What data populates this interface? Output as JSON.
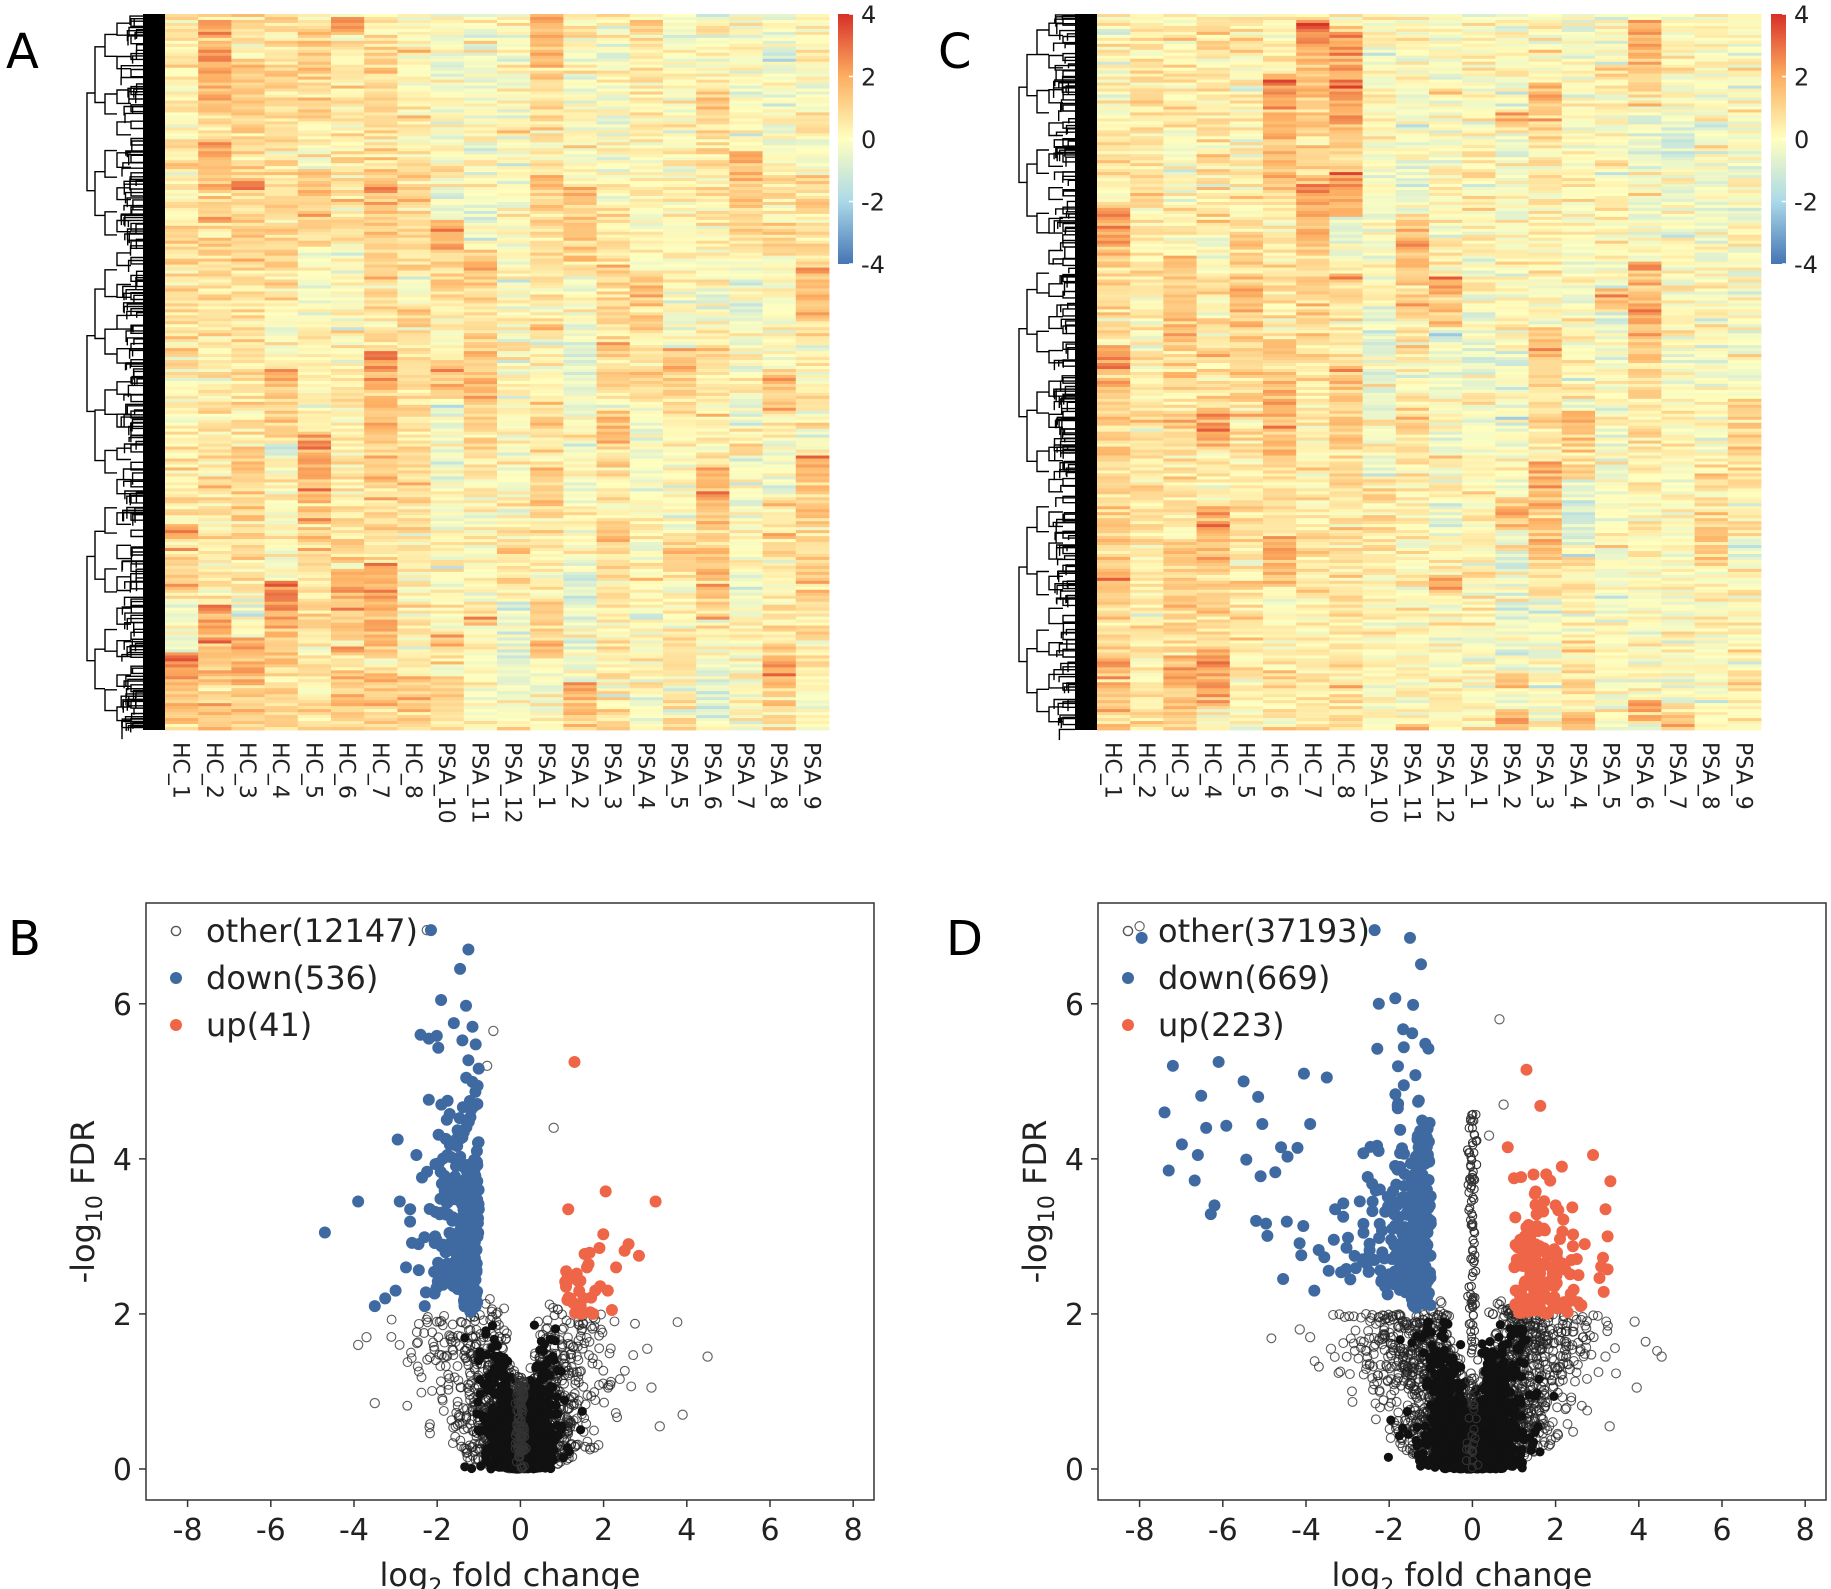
{
  "panels": {
    "A": {
      "label": "A"
    },
    "B": {
      "label": "B"
    },
    "C": {
      "label": "C"
    },
    "D": {
      "label": "D"
    }
  },
  "colors": {
    "low": "#4575b4",
    "mid": "#ffffbf",
    "high": "#d73027",
    "other": "#555555",
    "down": "#3f6aa1",
    "up": "#ef6548",
    "dendrogram": "#000000"
  },
  "chart_data": [
    {
      "id": "A",
      "type": "heatmap",
      "title": "",
      "columns": [
        "HC_1",
        "HC_2",
        "HC_3",
        "HC_4",
        "HC_5",
        "HC_6",
        "HC_7",
        "HC_8",
        "PSA_10",
        "PSA_11",
        "PSA_12",
        "PSA_1",
        "PSA_2",
        "PSA_3",
        "PSA_4",
        "PSA_5",
        "PSA_6",
        "PSA_7",
        "PSA_8",
        "PSA_9"
      ],
      "colorbar": {
        "range": [
          -4,
          4
        ],
        "ticks": [
          "4",
          "2",
          "0",
          "-2",
          "-4"
        ]
      },
      "row_dendrogram": true
    },
    {
      "id": "C",
      "type": "heatmap",
      "title": "",
      "columns": [
        "HC_1",
        "HC_2",
        "HC_3",
        "HC_4",
        "HC_5",
        "HC_6",
        "HC_7",
        "HC_8",
        "PSA_10",
        "PSA_11",
        "PSA_12",
        "PSA_1",
        "PSA_2",
        "PSA_3",
        "PSA_4",
        "PSA_5",
        "PSA_6",
        "PSA_7",
        "PSA_8",
        "PSA_9"
      ],
      "colorbar": {
        "range": [
          -4,
          4
        ],
        "ticks": [
          "4",
          "2",
          "0",
          "-2",
          "-4"
        ]
      },
      "row_dendrogram": true
    },
    {
      "id": "B",
      "type": "scatter",
      "title": "",
      "xlabel_main": "log",
      "xlabel_sub": "2",
      "xlabel_rest": " fold change",
      "ylabel_main": "-log",
      "ylabel_sub": "10",
      "ylabel_rest": " FDR",
      "xlim": [
        -9,
        8.5
      ],
      "ylim": [
        -0.4,
        7.3
      ],
      "xticks": [
        "-8",
        "-6",
        "-4",
        "-2",
        "0",
        "2",
        "4",
        "6",
        "8"
      ],
      "yticks": [
        "0",
        "2",
        "4",
        "6"
      ],
      "legend": [
        {
          "name": "other",
          "label": "other(12147)",
          "count": 12147
        },
        {
          "name": "down",
          "label": "down(536)",
          "count": 536
        },
        {
          "name": "up",
          "label": "up(41)",
          "count": 41
        }
      ],
      "outliers_up": [
        [
          1.3,
          5.25
        ],
        [
          2.05,
          3.58
        ],
        [
          3.25,
          3.45
        ],
        [
          1.15,
          3.35
        ],
        [
          2.6,
          2.9
        ],
        [
          2.85,
          2.75
        ],
        [
          1.9,
          2.85
        ],
        [
          1.6,
          2.6
        ],
        [
          2.3,
          2.6
        ],
        [
          1.1,
          2.55
        ],
        [
          1.8,
          2.3
        ],
        [
          1.2,
          2.2
        ],
        [
          2.1,
          2.3
        ],
        [
          1.45,
          2.1
        ],
        [
          1.75,
          2.0
        ],
        [
          2.2,
          2.05
        ]
      ],
      "outliers_down": [
        [
          -4.7,
          3.05
        ],
        [
          -3.9,
          3.45
        ],
        [
          -3.5,
          2.1
        ],
        [
          -3.25,
          2.2
        ],
        [
          -2.95,
          4.25
        ],
        [
          -2.9,
          3.45
        ],
        [
          -2.4,
          5.6
        ],
        [
          -2.2,
          5.55
        ],
        [
          -2.15,
          6.95
        ],
        [
          -1.25,
          6.7
        ],
        [
          -1.45,
          6.45
        ],
        [
          -2.65,
          3.35
        ],
        [
          -2.5,
          4.05
        ],
        [
          -1.6,
          5.75
        ],
        [
          -2.3,
          2.1
        ],
        [
          -2.75,
          2.6
        ],
        [
          -3.0,
          2.3
        ],
        [
          -2.05,
          3.0
        ],
        [
          -1.9,
          4.7
        ]
      ],
      "outliers_other": [
        [
          4.5,
          1.45
        ],
        [
          3.9,
          0.7
        ],
        [
          3.35,
          0.55
        ],
        [
          3.15,
          1.05
        ],
        [
          3.05,
          1.55
        ],
        [
          0.8,
          4.4
        ],
        [
          -3.7,
          1.7
        ],
        [
          -3.9,
          1.6
        ],
        [
          -3.5,
          0.85
        ],
        [
          -2.25,
          6.95
        ],
        [
          -0.65,
          5.65
        ],
        [
          -0.8,
          5.2
        ]
      ]
    },
    {
      "id": "D",
      "type": "scatter",
      "title": "",
      "xlabel_main": "log",
      "xlabel_sub": "2",
      "xlabel_rest": " fold change",
      "ylabel_main": "-log",
      "ylabel_sub": "10",
      "ylabel_rest": " FDR",
      "xlim": [
        -9,
        8.5
      ],
      "ylim": [
        -0.4,
        7.3
      ],
      "xticks": [
        "-8",
        "-6",
        "-4",
        "-2",
        "0",
        "2",
        "4",
        "6",
        "8"
      ],
      "yticks": [
        "0",
        "2",
        "4",
        "6"
      ],
      "legend": [
        {
          "name": "other",
          "label": "other(37193)",
          "count": 37193
        },
        {
          "name": "down",
          "label": "down(669)",
          "count": 669
        },
        {
          "name": "up",
          "label": "up(223)",
          "count": 223
        }
      ],
      "outliers_up": [
        [
          1.3,
          5.15
        ],
        [
          0.85,
          4.15
        ],
        [
          2.15,
          3.9
        ],
        [
          2.9,
          4.05
        ],
        [
          3.2,
          3.35
        ],
        [
          3.25,
          3.0
        ],
        [
          1.0,
          3.75
        ],
        [
          1.5,
          3.55
        ],
        [
          2.0,
          3.4
        ],
        [
          1.3,
          3.0
        ],
        [
          2.7,
          2.9
        ],
        [
          2.55,
          2.5
        ],
        [
          1.15,
          2.3
        ],
        [
          1.9,
          2.6
        ],
        [
          2.3,
          2.15
        ],
        [
          2.6,
          2.1
        ]
      ],
      "outliers_down": [
        [
          -7.95,
          6.85
        ],
        [
          -7.2,
          5.2
        ],
        [
          -6.1,
          5.25
        ],
        [
          -5.5,
          5.0
        ],
        [
          -7.4,
          4.6
        ],
        [
          -7.3,
          3.85
        ],
        [
          -6.4,
          4.4
        ],
        [
          -6.2,
          3.4
        ],
        [
          -6.6,
          4.05
        ],
        [
          -5.05,
          4.45
        ],
        [
          -4.6,
          4.15
        ],
        [
          -3.5,
          5.05
        ],
        [
          -4.05,
          5.1
        ],
        [
          -3.9,
          4.45
        ],
        [
          -5.15,
          4.8
        ],
        [
          -2.35,
          6.95
        ],
        [
          -1.5,
          6.85
        ],
        [
          -2.25,
          6.0
        ],
        [
          -3.3,
          3.35
        ],
        [
          -4.55,
          2.45
        ],
        [
          -5.2,
          3.2
        ],
        [
          -3.8,
          2.3
        ]
      ],
      "outliers_other": [
        [
          4.55,
          1.45
        ],
        [
          3.9,
          1.9
        ],
        [
          3.95,
          1.05
        ],
        [
          3.3,
          0.55
        ],
        [
          3.2,
          1.45
        ],
        [
          0.65,
          5.8
        ],
        [
          0.75,
          4.7
        ],
        [
          0.4,
          4.3
        ],
        [
          -8.0,
          7.0
        ],
        [
          -3.9,
          1.7
        ],
        [
          -3.4,
          1.55
        ],
        [
          -4.15,
          1.8
        ]
      ]
    }
  ]
}
